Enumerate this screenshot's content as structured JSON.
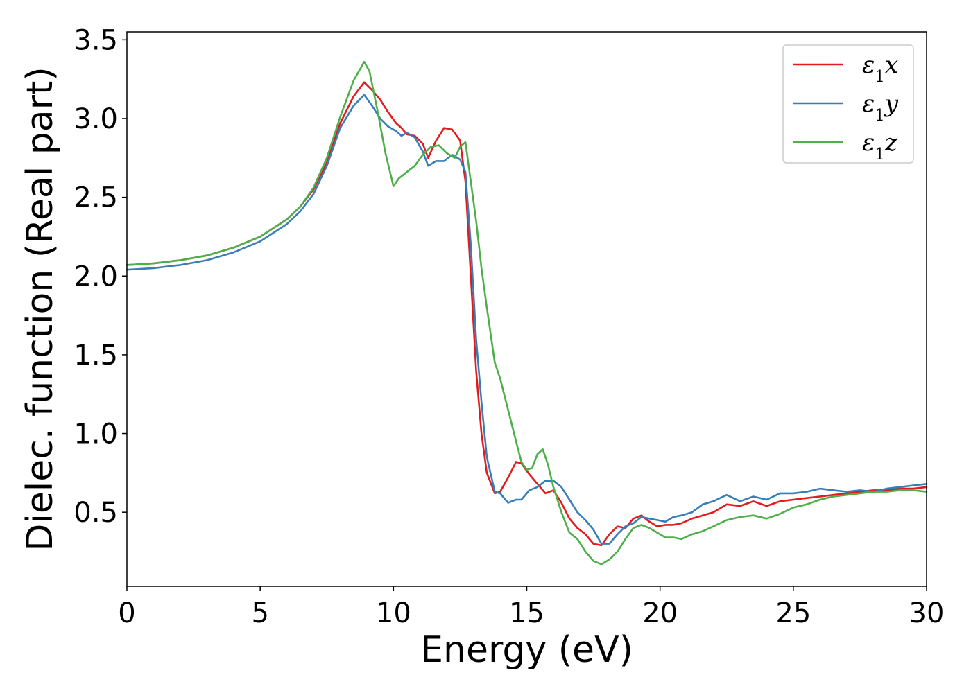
{
  "chart_data": {
    "type": "line",
    "title": "",
    "xlabel": "Energy (eV)",
    "ylabel": "Dielec. function (Real part)",
    "xlim": [
      0,
      30
    ],
    "ylim": [
      0.03,
      3.55
    ],
    "xticks": [
      0,
      5,
      10,
      15,
      20,
      25,
      30
    ],
    "xtick_labels": [
      "0",
      "5",
      "10",
      "15",
      "20",
      "25",
      "30"
    ],
    "yticks": [
      0.5,
      1.0,
      1.5,
      2.0,
      2.5,
      3.0,
      3.5
    ],
    "ytick_labels": [
      "0.5",
      "1.0",
      "1.5",
      "2.0",
      "2.5",
      "3.0",
      "3.5"
    ],
    "grid": false,
    "legend": {
      "position": "top-right",
      "entries": [
        {
          "symbol": "ε",
          "sub": "1",
          "var": "x",
          "color": "#e41a1c"
        },
        {
          "symbol": "ε",
          "sub": "1",
          "var": "y",
          "color": "#377eb8"
        },
        {
          "symbol": "ε",
          "sub": "1",
          "var": "z",
          "color": "#4daf4a"
        }
      ]
    },
    "series": [
      {
        "color": "#e41a1c",
        "x": [
          0,
          1,
          2,
          3,
          4,
          5,
          6,
          6.5,
          7,
          7.5,
          8,
          8.5,
          8.9,
          9.2,
          9.5,
          9.8,
          10.1,
          10.3,
          10.5,
          10.8,
          11.1,
          11.3,
          11.6,
          11.9,
          12.2,
          12.5,
          12.7,
          12.9,
          13.1,
          13.3,
          13.5,
          13.8,
          14.0,
          14.3,
          14.6,
          14.8,
          15.1,
          15.4,
          15.7,
          16.0,
          16.3,
          16.6,
          16.9,
          17.2,
          17.5,
          17.8,
          18.1,
          18.4,
          18.7,
          19.0,
          19.3,
          19.6,
          19.9,
          20.2,
          20.5,
          20.8,
          21.2,
          21.6,
          22.0,
          22.5,
          23.0,
          23.5,
          24.0,
          24.5,
          25.0,
          25.5,
          26.0,
          26.5,
          27.0,
          27.5,
          28.0,
          28.5,
          29.0,
          29.5,
          30.0
        ],
        "y": [
          2.07,
          2.08,
          2.1,
          2.13,
          2.18,
          2.25,
          2.36,
          2.44,
          2.55,
          2.72,
          2.97,
          3.14,
          3.23,
          3.18,
          3.12,
          3.04,
          2.97,
          2.94,
          2.9,
          2.89,
          2.84,
          2.75,
          2.86,
          2.94,
          2.93,
          2.86,
          2.6,
          2.0,
          1.4,
          1.0,
          0.75,
          0.62,
          0.63,
          0.72,
          0.82,
          0.81,
          0.74,
          0.68,
          0.62,
          0.64,
          0.56,
          0.46,
          0.4,
          0.36,
          0.3,
          0.29,
          0.36,
          0.41,
          0.4,
          0.46,
          0.48,
          0.44,
          0.41,
          0.42,
          0.42,
          0.43,
          0.46,
          0.48,
          0.5,
          0.55,
          0.54,
          0.57,
          0.54,
          0.57,
          0.58,
          0.59,
          0.6,
          0.61,
          0.62,
          0.63,
          0.64,
          0.64,
          0.65,
          0.65,
          0.66
        ]
      },
      {
        "color": "#377eb8",
        "x": [
          0,
          1,
          2,
          3,
          4,
          5,
          6,
          6.5,
          7,
          7.5,
          8,
          8.5,
          8.9,
          9.2,
          9.5,
          9.8,
          10.1,
          10.3,
          10.5,
          10.8,
          11.1,
          11.3,
          11.6,
          11.9,
          12.2,
          12.5,
          12.7,
          12.9,
          13.1,
          13.3,
          13.5,
          13.8,
          14.0,
          14.3,
          14.6,
          14.8,
          15.1,
          15.4,
          15.7,
          16.0,
          16.3,
          16.6,
          16.9,
          17.2,
          17.5,
          17.8,
          18.1,
          18.4,
          18.7,
          19.0,
          19.3,
          19.6,
          19.9,
          20.2,
          20.5,
          20.8,
          21.2,
          21.6,
          22.0,
          22.5,
          23.0,
          23.5,
          24.0,
          24.5,
          25.0,
          25.5,
          26.0,
          26.5,
          27.0,
          27.5,
          28.0,
          28.5,
          29.0,
          29.5,
          30.0
        ],
        "y": [
          2.04,
          2.05,
          2.07,
          2.1,
          2.15,
          2.22,
          2.33,
          2.41,
          2.52,
          2.7,
          2.94,
          3.08,
          3.15,
          3.08,
          3.0,
          2.95,
          2.92,
          2.89,
          2.91,
          2.88,
          2.79,
          2.7,
          2.73,
          2.73,
          2.77,
          2.74,
          2.66,
          2.2,
          1.6,
          1.2,
          0.85,
          0.63,
          0.62,
          0.56,
          0.58,
          0.58,
          0.64,
          0.66,
          0.7,
          0.7,
          0.66,
          0.58,
          0.5,
          0.45,
          0.39,
          0.3,
          0.3,
          0.36,
          0.41,
          0.43,
          0.47,
          0.46,
          0.45,
          0.44,
          0.47,
          0.48,
          0.5,
          0.55,
          0.57,
          0.61,
          0.57,
          0.6,
          0.58,
          0.62,
          0.62,
          0.63,
          0.65,
          0.64,
          0.63,
          0.64,
          0.63,
          0.65,
          0.66,
          0.67,
          0.68
        ]
      },
      {
        "color": "#4daf4a",
        "x": [
          0,
          1,
          2,
          3,
          4,
          5,
          6,
          6.5,
          7,
          7.5,
          8,
          8.5,
          8.9,
          9.1,
          9.4,
          9.7,
          10.0,
          10.2,
          10.5,
          10.8,
          11.1,
          11.4,
          11.7,
          12.0,
          12.3,
          12.5,
          12.7,
          12.9,
          13.1,
          13.3,
          13.5,
          13.8,
          14.0,
          14.3,
          14.6,
          14.8,
          15.0,
          15.2,
          15.4,
          15.6,
          15.8,
          16.0,
          16.3,
          16.6,
          16.9,
          17.2,
          17.5,
          17.8,
          18.1,
          18.4,
          18.7,
          19.0,
          19.3,
          19.6,
          19.9,
          20.2,
          20.5,
          20.8,
          21.2,
          21.6,
          22.0,
          22.5,
          23.0,
          23.5,
          24.0,
          24.5,
          25.0,
          25.5,
          26.0,
          26.5,
          27.0,
          27.5,
          28.0,
          28.5,
          29.0,
          29.5,
          30.0
        ],
        "y": [
          2.07,
          2.08,
          2.1,
          2.13,
          2.18,
          2.25,
          2.36,
          2.44,
          2.56,
          2.75,
          3.01,
          3.24,
          3.36,
          3.3,
          3.05,
          2.78,
          2.57,
          2.62,
          2.66,
          2.7,
          2.77,
          2.82,
          2.83,
          2.78,
          2.75,
          2.82,
          2.85,
          2.6,
          2.35,
          2.05,
          1.8,
          1.45,
          1.35,
          1.15,
          0.95,
          0.82,
          0.77,
          0.78,
          0.87,
          0.9,
          0.8,
          0.66,
          0.5,
          0.37,
          0.33,
          0.25,
          0.19,
          0.17,
          0.2,
          0.25,
          0.33,
          0.4,
          0.42,
          0.4,
          0.37,
          0.34,
          0.34,
          0.33,
          0.36,
          0.38,
          0.41,
          0.45,
          0.47,
          0.48,
          0.46,
          0.49,
          0.53,
          0.55,
          0.58,
          0.6,
          0.61,
          0.62,
          0.63,
          0.63,
          0.64,
          0.64,
          0.63
        ]
      }
    ]
  }
}
